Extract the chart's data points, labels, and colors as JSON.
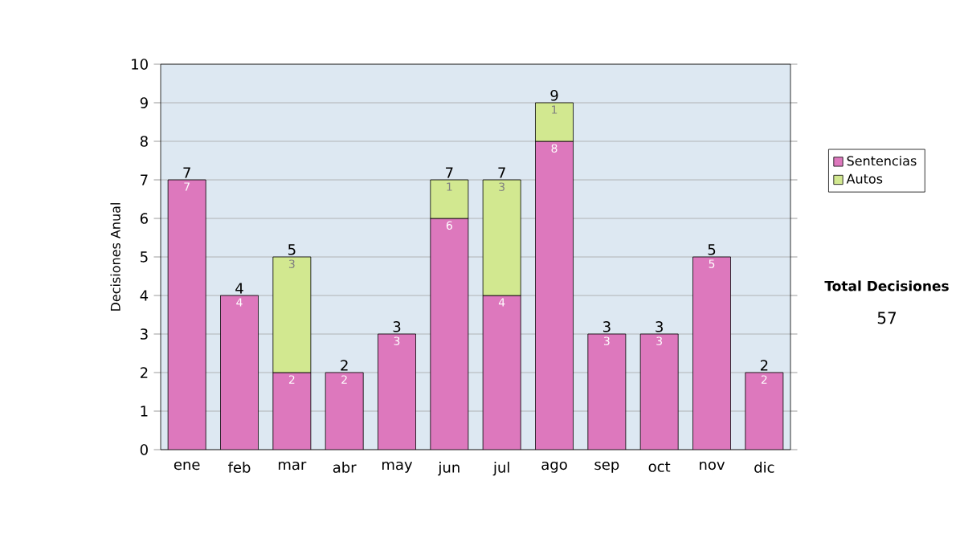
{
  "chart_data": {
    "type": "bar",
    "stacked": true,
    "ylabel": "Decisiones Anual",
    "categories": [
      "ene",
      "feb",
      "mar",
      "abr",
      "may",
      "jun",
      "jul",
      "ago",
      "sep",
      "oct",
      "nov",
      "dic"
    ],
    "series": [
      {
        "name": "Sentencias",
        "color": "#dd78bd",
        "values": [
          7,
          4,
          2,
          2,
          3,
          6,
          4,
          8,
          3,
          3,
          5,
          2
        ]
      },
      {
        "name": "Autos",
        "color": "#d2e890",
        "values": [
          null,
          null,
          3,
          null,
          null,
          1,
          3,
          1,
          null,
          null,
          null,
          null
        ]
      }
    ],
    "totals": [
      "7",
      "4",
      "5",
      "2",
      "3",
      "7",
      "7",
      "9",
      "3",
      "3",
      "5",
      "2"
    ],
    "data_labels": true,
    "ylim": [
      0,
      10
    ],
    "yticks": [
      0,
      1,
      2,
      3,
      4,
      5,
      6,
      7,
      8,
      9,
      10
    ],
    "grid": "y",
    "legend": "right",
    "annotations": [
      "Total Decisiones",
      "57"
    ]
  }
}
